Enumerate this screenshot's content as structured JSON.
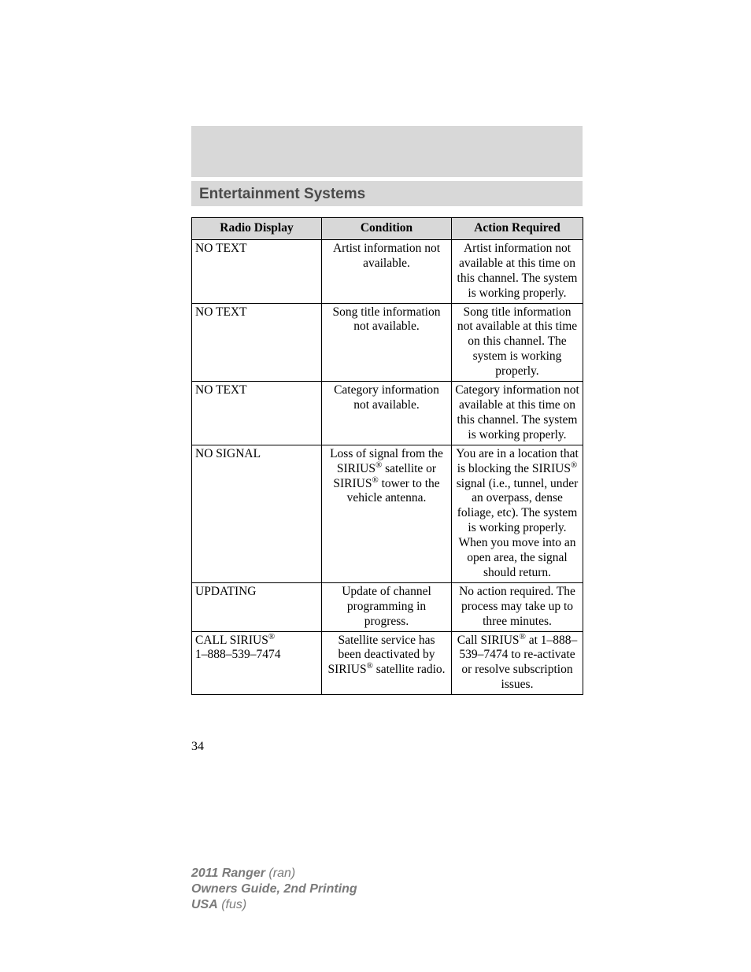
{
  "section_title": "Entertainment Systems",
  "table": {
    "headers": [
      "Radio Display",
      "Condition",
      "Action Required"
    ],
    "rows": [
      {
        "display": "NO TEXT",
        "condition": "Artist information not available.",
        "action": "Artist information not available at this time on this channel. The system is working properly."
      },
      {
        "display": "NO TEXT",
        "condition": "Song title information not available.",
        "action": "Song title information not available at this time on this channel. The system is working properly."
      },
      {
        "display": "NO TEXT",
        "condition": "Category information not available.",
        "action": "Category information not available at this time on this channel. The system is working properly."
      },
      {
        "display": "NO SIGNAL",
        "condition_html": "Loss of signal from the SIRIUS<span class='reg'>®</span> satellite or SIRIUS<span class='reg'>®</span> tower to the vehicle antenna.",
        "action_html": "You are in a location that is blocking the SIRIUS<span class='reg'>®</span> signal (i.e., tunnel, under an overpass, dense foliage, etc). The system is working properly. When you move into an open area, the signal should return."
      },
      {
        "display": "UPDATING",
        "condition": "Update of channel programming in progress.",
        "action": "No action required. The process may take up to three minutes."
      },
      {
        "display_html": "CALL SIRIUS<span class='reg'>®</span><br>1–888–539–7474",
        "condition_html": "Satellite service has been deactivated by SIRIUS<span class='reg'>®</span> satellite radio.",
        "action_html": "Call SIRIUS<span class='reg'>®</span> at 1–888–539–7474 to re-activate or resolve subscription issues."
      }
    ]
  },
  "page_number": "34",
  "footer": {
    "line1_bold": "2011 Ranger",
    "line1_rest": " (ran)",
    "line2": "Owners Guide, 2nd Printing",
    "line3_bold": "USA",
    "line3_rest": " (fus)"
  }
}
